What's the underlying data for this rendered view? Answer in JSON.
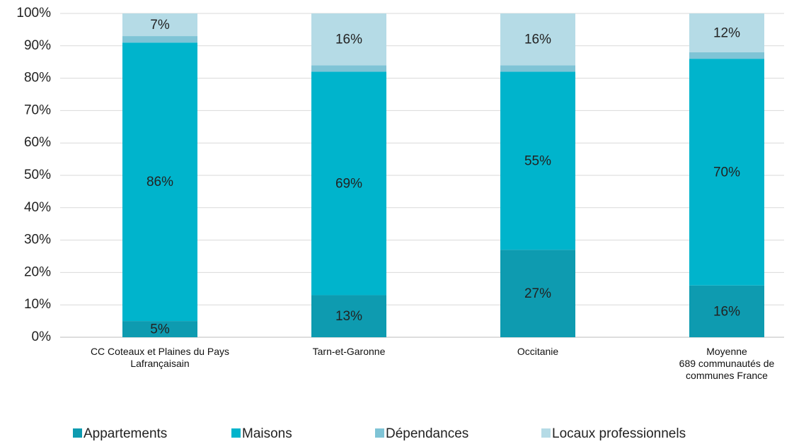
{
  "chart_data": {
    "type": "stacked_bar",
    "categories": [
      "CC Coteaux et Plaines du Pays\nLafrançaisain",
      "Tarn-et-Garonne",
      "Occitanie",
      "Moyenne\n689 communautés de\ncommunes France"
    ],
    "series": [
      {
        "name": "Appartements",
        "color": "#0e9bb0",
        "values": [
          5,
          13,
          27,
          16
        ],
        "value_labels": [
          "5%",
          "13%",
          "27%",
          "16%"
        ]
      },
      {
        "name": "Maisons",
        "color": "#00b4cc",
        "values": [
          86,
          69,
          55,
          70
        ],
        "value_labels": [
          "86%",
          "69%",
          "55%",
          "70%"
        ]
      },
      {
        "name": "Dépendances",
        "color": "#7fc4d6",
        "values": [
          2,
          2,
          2,
          2
        ]
      },
      {
        "name": "Locaux professionnels",
        "color": "#b5dbe6",
        "values": [
          7,
          16,
          16,
          12
        ],
        "value_labels": [
          "7%",
          "16%",
          "16%",
          "12%"
        ]
      }
    ],
    "ylim": [
      0,
      100
    ],
    "yticks": [
      {
        "value": 0,
        "label": "0%"
      },
      {
        "value": 10,
        "label": "10%"
      },
      {
        "value": 20,
        "label": "20%"
      },
      {
        "value": 30,
        "label": "30%"
      },
      {
        "value": 40,
        "label": "40%"
      },
      {
        "value": 50,
        "label": "50%"
      },
      {
        "value": 60,
        "label": "60%"
      },
      {
        "value": 70,
        "label": "70%"
      },
      {
        "value": 80,
        "label": "80%"
      },
      {
        "value": 90,
        "label": "90%"
      },
      {
        "value": 100,
        "label": "100%"
      }
    ],
    "grid": true,
    "legend": "bottom"
  }
}
